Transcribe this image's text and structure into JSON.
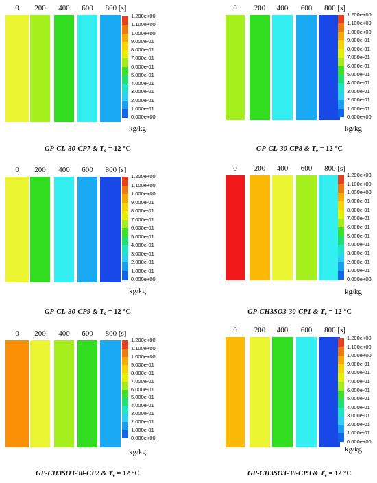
{
  "legend": {
    "levels": [
      "1.200e+00",
      "1.100e+00",
      "1.000e+00",
      "9.000e-01",
      "8.000e-01",
      "7.000e-01",
      "6.000e-01",
      "5.000e-01",
      "4.000e-01",
      "3.000e-01",
      "2.000e-01",
      "1.000e-01",
      "0.000e+00"
    ],
    "colors": [
      "#e8401e",
      "#f07a10",
      "#f7aa00",
      "#f7d600",
      "#e4f000",
      "#a6ec1a",
      "#3ee12a",
      "#1fe070",
      "#1fe7c4",
      "#2cd1f3",
      "#199ef2",
      "#0f64e8",
      "#1a2cd6"
    ],
    "unit": "kg/kg"
  },
  "panels": [
    {
      "times": [
        "0",
        "200",
        "400",
        "600",
        "800 [s]"
      ],
      "bar_colors": [
        "#ecf531",
        "#a4ef1c",
        "#31dd1f",
        "#34eff1",
        "#19aaf3"
      ],
      "caption": {
        "code": "GP-CL-30-CP7",
        "amp": " & ",
        "t": "T",
        "sub": "e",
        "rest": " = 12 °C"
      }
    },
    {
      "times": [
        "0",
        "200",
        "400",
        "600",
        "800 [s]"
      ],
      "bar_colors": [
        "#a4ef1c",
        "#31dd1f",
        "#34eff1",
        "#19aaf3",
        "#1848e7"
      ],
      "caption": {
        "code": "GP-CL-30-CP8",
        "amp": " & ",
        "t": "T",
        "sub": "e",
        "rest": " = 12 °C"
      }
    },
    {
      "times": [
        "0",
        "200",
        "400",
        "600",
        "800 [s]"
      ],
      "bar_colors": [
        "#ecf531",
        "#31dd1f",
        "#34eff1",
        "#19aaf3",
        "#1848e7"
      ],
      "caption": {
        "code": "GP-CL-30-CP9",
        "amp": " & ",
        "t": "T",
        "sub": "e",
        "rest": " = 12 °C"
      }
    },
    {
      "times": [
        "0",
        "200",
        "400",
        "600",
        "800 [s]"
      ],
      "bar_colors": [
        "#f01818",
        "#fcba07",
        "#ecf531",
        "#a4ef1c",
        "#34eff1"
      ],
      "caption": {
        "code": "GP-CH3SO3-30-CP1",
        "amp": " & ",
        "t": "T",
        "sub": "e",
        "rest": " = 12 °C"
      }
    },
    {
      "times": [
        "0",
        "200",
        "400",
        "600",
        "800 [s]"
      ],
      "bar_colors": [
        "#fb9006",
        "#ecf531",
        "#a4ef1c",
        "#31dd1f",
        "#19aaf3"
      ],
      "caption": {
        "code": "GP-CH3SO3-30-CP2",
        "amp": " & ",
        "t": "T",
        "sub": "e",
        "rest": " = 12 °C"
      }
    },
    {
      "times": [
        "0",
        "200",
        "400",
        "600",
        "800 [s]"
      ],
      "bar_colors": [
        "#fcba07",
        "#ecf531",
        "#31dd1f",
        "#34eff1",
        "#1848e7"
      ],
      "caption": {
        "code": "GP-CH3SO3-30-CP3",
        "amp": " & ",
        "t": "T",
        "sub": "e",
        "rest": " = 12 °C"
      }
    }
  ]
}
